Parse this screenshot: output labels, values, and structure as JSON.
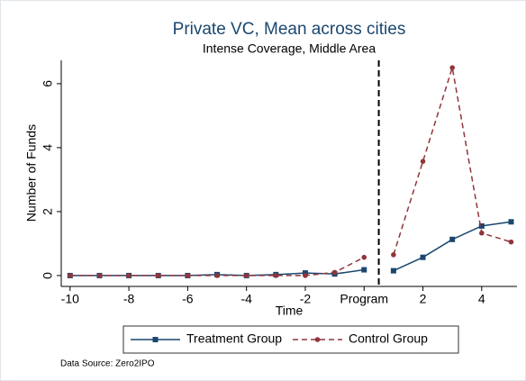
{
  "chart_data": {
    "type": "line",
    "title": "Private VC, Mean across cities",
    "subtitle": "Intense Coverage, Middle Area",
    "x_label": "Time",
    "y_label": "Number of Funds",
    "source": "Data Source: Zero2IPO",
    "x": [
      -10,
      -9,
      -8,
      -7,
      -6,
      -5,
      -4,
      -3,
      -2,
      -1,
      0,
      1,
      2,
      3,
      4,
      5
    ],
    "series": [
      {
        "name": "Treatment Group",
        "color": "#1a476f",
        "dash": false,
        "marker": "square",
        "values": [
          0,
          0,
          0,
          0,
          0,
          0.03,
          0,
          0.03,
          0.08,
          0.05,
          0.18,
          0.15,
          0.57,
          1.13,
          1.55,
          1.68
        ]
      },
      {
        "name": "Control Group",
        "color": "#90353b",
        "dash": true,
        "marker": "circle",
        "values": [
          0,
          0,
          0,
          0,
          0,
          0,
          0,
          0,
          0,
          0.1,
          0.57,
          0.65,
          3.57,
          6.5,
          1.33,
          1.05
        ]
      }
    ],
    "xlim": [
      -10.3,
      5.2
    ],
    "ylim": [
      -0.34,
      6.73
    ],
    "xticks": [
      -10,
      -8,
      -6,
      -4,
      -2,
      {
        "value": 0,
        "label": "Program"
      },
      2,
      4
    ],
    "yticks": [
      0,
      2,
      4,
      6
    ],
    "vline": 0.5,
    "legend": "bottom"
  }
}
